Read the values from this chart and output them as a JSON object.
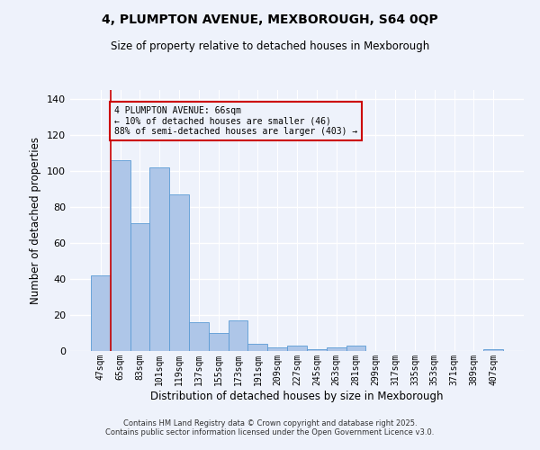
{
  "title_line1": "4, PLUMPTON AVENUE, MEXBOROUGH, S64 0QP",
  "title_line2": "Size of property relative to detached houses in Mexborough",
  "xlabel": "Distribution of detached houses by size in Mexborough",
  "ylabel": "Number of detached properties",
  "categories": [
    "47sqm",
    "65sqm",
    "83sqm",
    "101sqm",
    "119sqm",
    "137sqm",
    "155sqm",
    "173sqm",
    "191sqm",
    "209sqm",
    "227sqm",
    "245sqm",
    "263sqm",
    "281sqm",
    "299sqm",
    "317sqm",
    "335sqm",
    "353sqm",
    "371sqm",
    "389sqm",
    "407sqm"
  ],
  "values": [
    42,
    106,
    71,
    102,
    87,
    16,
    10,
    17,
    4,
    2,
    3,
    1,
    2,
    3,
    0,
    0,
    0,
    0,
    0,
    0,
    1
  ],
  "bar_color": "#aec6e8",
  "bar_edge_color": "#5b9bd5",
  "background_color": "#eef2fb",
  "grid_color": "#ffffff",
  "annotation_text": "4 PLUMPTON AVENUE: 66sqm\n← 10% of detached houses are smaller (46)\n88% of semi-detached houses are larger (403) →",
  "annotation_box_edge": "#cc0000",
  "vertical_line_x": 1,
  "ylim": [
    0,
    145
  ],
  "yticks": [
    0,
    20,
    40,
    60,
    80,
    100,
    120,
    140
  ],
  "footer_line1": "Contains HM Land Registry data © Crown copyright and database right 2025.",
  "footer_line2": "Contains public sector information licensed under the Open Government Licence v3.0."
}
